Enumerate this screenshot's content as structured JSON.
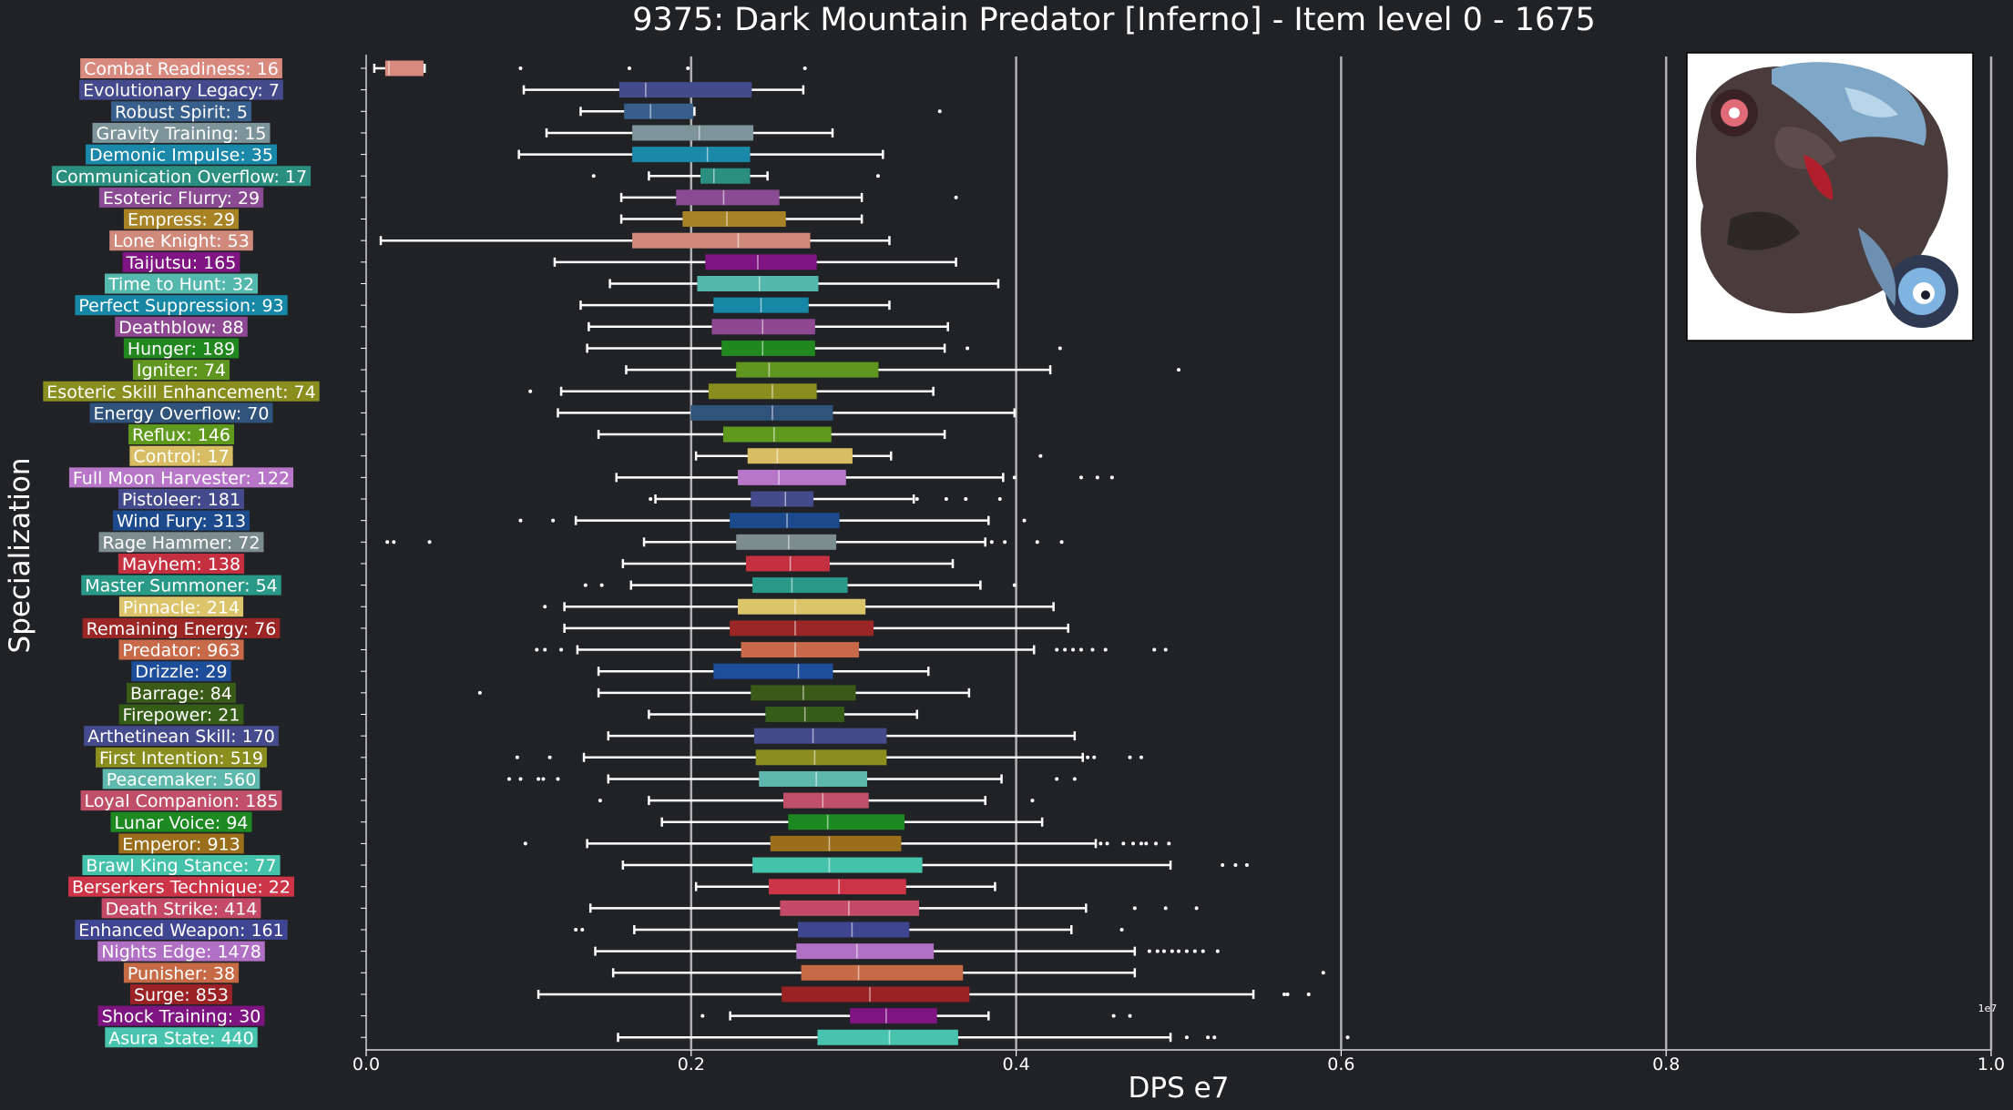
{
  "chart_data": {
    "type": "box",
    "orientation": "horizontal",
    "title": "9375: Dark Mountain Predator [Inferno] - Item level 0 - 1675",
    "xlabel": "DPS e7",
    "ylabel": "Specialization",
    "x_multiplier_label": "1e7",
    "xlim": [
      0,
      1.0
    ],
    "x_ticks": [
      "0.0",
      "0.2",
      "0.4",
      "0.6",
      "0.8",
      "1.0"
    ],
    "x_tick_values": [
      0,
      0.2,
      0.4,
      0.6,
      0.8,
      1.0
    ],
    "grid": "vertical lines at x ticks",
    "legend": "none",
    "portrait_icon": "dark-mountain-predator-portrait",
    "series": [
      {
        "label": "Combat Readiness: 16",
        "color": "#d88a7e",
        "whisker_low": 0.005,
        "q1": 0.012,
        "median": 0.014,
        "q3": 0.035,
        "whisker_high": 0.036,
        "outliers": [
          0.095,
          0.162,
          0.198,
          0.27
        ]
      },
      {
        "label": "Evolutionary Legacy: 7",
        "color": "#444a8c",
        "whisker_low": 0.097,
        "q1": 0.156,
        "median": 0.172,
        "q3": 0.237,
        "whisker_high": 0.269,
        "outliers": []
      },
      {
        "label": "Robust Spirit: 5",
        "color": "#385f8c",
        "whisker_low": 0.132,
        "q1": 0.159,
        "median": 0.175,
        "q3": 0.201,
        "whisker_high": 0.202,
        "outliers": [
          0.353
        ]
      },
      {
        "label": "Gravity Training: 15",
        "color": "#7d959a",
        "whisker_low": 0.111,
        "q1": 0.164,
        "median": 0.205,
        "q3": 0.238,
        "whisker_high": 0.287,
        "outliers": []
      },
      {
        "label": "Demonic Impulse: 35",
        "color": "#1a88a8",
        "whisker_low": 0.094,
        "q1": 0.164,
        "median": 0.21,
        "q3": 0.236,
        "whisker_high": 0.318,
        "outliers": []
      },
      {
        "label": "Communication Overflow: 17",
        "color": "#2a8f7f",
        "whisker_low": 0.174,
        "q1": 0.206,
        "median": 0.214,
        "q3": 0.236,
        "whisker_high": 0.247,
        "outliers": [
          0.14,
          0.315
        ]
      },
      {
        "label": "Esoteric Flurry: 29",
        "color": "#8a4b93",
        "whisker_low": 0.157,
        "q1": 0.191,
        "median": 0.22,
        "q3": 0.254,
        "whisker_high": 0.305,
        "outliers": [
          0.363
        ]
      },
      {
        "label": "Empress: 29",
        "color": "#a88326",
        "whisker_low": 0.157,
        "q1": 0.195,
        "median": 0.222,
        "q3": 0.258,
        "whisker_high": 0.305,
        "outliers": []
      },
      {
        "label": "Lone Knight: 53",
        "color": "#d08a7c",
        "whisker_low": 0.009,
        "q1": 0.164,
        "median": 0.229,
        "q3": 0.273,
        "whisker_high": 0.322,
        "outliers": []
      },
      {
        "label": "Taijutsu: 165",
        "color": "#7e1583",
        "whisker_low": 0.116,
        "q1": 0.209,
        "median": 0.241,
        "q3": 0.277,
        "whisker_high": 0.363,
        "outliers": []
      },
      {
        "label": "Time to Hunt: 32",
        "color": "#55b8ac",
        "whisker_low": 0.15,
        "q1": 0.204,
        "median": 0.242,
        "q3": 0.278,
        "whisker_high": 0.389,
        "outliers": []
      },
      {
        "label": "Perfect Suppression: 93",
        "color": "#1687a5",
        "whisker_low": 0.132,
        "q1": 0.214,
        "median": 0.243,
        "q3": 0.272,
        "whisker_high": 0.322,
        "outliers": []
      },
      {
        "label": "Deathblow: 88",
        "color": "#8e4892",
        "whisker_low": 0.137,
        "q1": 0.213,
        "median": 0.244,
        "q3": 0.276,
        "whisker_high": 0.358,
        "outliers": []
      },
      {
        "label": "Hunger: 189",
        "color": "#20881e",
        "whisker_low": 0.136,
        "q1": 0.219,
        "median": 0.244,
        "q3": 0.276,
        "whisker_high": 0.356,
        "outliers": [
          0.37,
          0.427
        ]
      },
      {
        "label": "Igniter: 74",
        "color": "#5f961f",
        "whisker_low": 0.16,
        "q1": 0.228,
        "median": 0.248,
        "q3": 0.315,
        "whisker_high": 0.421,
        "outliers": [
          0.5
        ]
      },
      {
        "label": "Esoteric Skill Enhancement: 74",
        "color": "#898e1e",
        "whisker_low": 0.12,
        "q1": 0.211,
        "median": 0.25,
        "q3": 0.277,
        "whisker_high": 0.349,
        "outliers": [
          0.101
        ]
      },
      {
        "label": "Energy Overflow: 70",
        "color": "#2f537a",
        "whisker_low": 0.118,
        "q1": 0.2,
        "median": 0.25,
        "q3": 0.287,
        "whisker_high": 0.399,
        "outliers": []
      },
      {
        "label": "Reflux: 146",
        "color": "#5f9a1f",
        "whisker_low": 0.143,
        "q1": 0.22,
        "median": 0.251,
        "q3": 0.286,
        "whisker_high": 0.356,
        "outliers": []
      },
      {
        "label": "Control: 17",
        "color": "#d8bd64",
        "whisker_low": 0.203,
        "q1": 0.235,
        "median": 0.253,
        "q3": 0.299,
        "whisker_high": 0.323,
        "outliers": [
          0.415
        ]
      },
      {
        "label": "Full Moon Harvester: 122",
        "color": "#b776c8",
        "whisker_low": 0.154,
        "q1": 0.229,
        "median": 0.254,
        "q3": 0.295,
        "whisker_high": 0.392,
        "outliers": [
          0.399,
          0.44,
          0.45,
          0.459
        ]
      },
      {
        "label": "Pistoleer: 181",
        "color": "#444a8c",
        "whisker_low": 0.178,
        "q1": 0.237,
        "median": 0.258,
        "q3": 0.275,
        "whisker_high": 0.337,
        "outliers": [
          0.175,
          0.339,
          0.357,
          0.369,
          0.39
        ]
      },
      {
        "label": "Wind Fury: 313",
        "color": "#1c4a8c",
        "whisker_low": 0.129,
        "q1": 0.224,
        "median": 0.259,
        "q3": 0.291,
        "whisker_high": 0.383,
        "outliers": [
          0.095,
          0.115,
          0.405
        ]
      },
      {
        "label": "Rage Hammer: 72",
        "color": "#7d8c8e",
        "whisker_low": 0.171,
        "q1": 0.228,
        "median": 0.26,
        "q3": 0.289,
        "whisker_high": 0.381,
        "outliers": [
          0.013,
          0.017,
          0.039,
          0.385,
          0.393,
          0.413,
          0.428
        ]
      },
      {
        "label": "Mayhem: 138",
        "color": "#c4303f",
        "whisker_low": 0.158,
        "q1": 0.234,
        "median": 0.261,
        "q3": 0.285,
        "whisker_high": 0.361,
        "outliers": []
      },
      {
        "label": "Master Summoner: 54",
        "color": "#2a9a88",
        "whisker_low": 0.163,
        "q1": 0.238,
        "median": 0.262,
        "q3": 0.296,
        "whisker_high": 0.378,
        "outliers": [
          0.135,
          0.145,
          0.399
        ]
      },
      {
        "label": "Pinnacle: 214",
        "color": "#dcc46a",
        "whisker_low": 0.122,
        "q1": 0.229,
        "median": 0.264,
        "q3": 0.307,
        "whisker_high": 0.423,
        "outliers": [
          0.11
        ]
      },
      {
        "label": "Remaining Energy: 76",
        "color": "#9a2625",
        "whisker_low": 0.122,
        "q1": 0.224,
        "median": 0.264,
        "q3": 0.312,
        "whisker_high": 0.432,
        "outliers": []
      },
      {
        "label": "Predator: 963",
        "color": "#c86a4a",
        "whisker_low": 0.13,
        "q1": 0.231,
        "median": 0.264,
        "q3": 0.303,
        "whisker_high": 0.411,
        "outliers": [
          0.105,
          0.11,
          0.12,
          0.425,
          0.43,
          0.435,
          0.44,
          0.447,
          0.455,
          0.485,
          0.492
        ]
      },
      {
        "label": "Drizzle: 29",
        "color": "#1e4d99",
        "whisker_low": 0.143,
        "q1": 0.214,
        "median": 0.266,
        "q3": 0.287,
        "whisker_high": 0.346,
        "outliers": []
      },
      {
        "label": "Barrage: 84",
        "color": "#3a5a17",
        "whisker_low": 0.143,
        "q1": 0.237,
        "median": 0.269,
        "q3": 0.301,
        "whisker_high": 0.371,
        "outliers": [
          0.07
        ]
      },
      {
        "label": "Firepower: 21",
        "color": "#355d17",
        "whisker_low": 0.174,
        "q1": 0.246,
        "median": 0.27,
        "q3": 0.294,
        "whisker_high": 0.339,
        "outliers": []
      },
      {
        "label": "Arthetinean Skill: 170",
        "color": "#444a8c",
        "whisker_low": 0.149,
        "q1": 0.239,
        "median": 0.275,
        "q3": 0.32,
        "whisker_high": 0.436,
        "outliers": []
      },
      {
        "label": "First Intention: 519",
        "color": "#898e1e",
        "whisker_low": 0.134,
        "q1": 0.24,
        "median": 0.276,
        "q3": 0.32,
        "whisker_high": 0.441,
        "outliers": [
          0.093,
          0.113,
          0.444,
          0.448,
          0.47,
          0.477
        ]
      },
      {
        "label": "Peacemaker: 560",
        "color": "#5eb8ac",
        "whisker_low": 0.149,
        "q1": 0.242,
        "median": 0.277,
        "q3": 0.308,
        "whisker_high": 0.391,
        "outliers": [
          0.088,
          0.095,
          0.106,
          0.109,
          0.118,
          0.425,
          0.436
        ]
      },
      {
        "label": "Loyal Companion: 185",
        "color": "#c0506a",
        "whisker_low": 0.174,
        "q1": 0.257,
        "median": 0.281,
        "q3": 0.309,
        "whisker_high": 0.381,
        "outliers": [
          0.144,
          0.41
        ]
      },
      {
        "label": "Lunar Voice: 94",
        "color": "#1c8a20",
        "whisker_low": 0.182,
        "q1": 0.26,
        "median": 0.284,
        "q3": 0.331,
        "whisker_high": 0.416,
        "outliers": []
      },
      {
        "label": "Emperor: 913",
        "color": "#9a6e1a",
        "whisker_low": 0.136,
        "q1": 0.249,
        "median": 0.285,
        "q3": 0.329,
        "whisker_high": 0.449,
        "outliers": [
          0.098,
          0.452,
          0.456,
          0.466,
          0.472,
          0.477,
          0.48,
          0.486,
          0.494
        ]
      },
      {
        "label": "Brawl King Stance: 77",
        "color": "#45c2aa",
        "whisker_low": 0.158,
        "q1": 0.238,
        "median": 0.285,
        "q3": 0.342,
        "whisker_high": 0.495,
        "outliers": [
          0.527,
          0.535,
          0.542
        ]
      },
      {
        "label": "Berserkers Technique: 22",
        "color": "#cc3448",
        "whisker_low": 0.203,
        "q1": 0.248,
        "median": 0.291,
        "q3": 0.332,
        "whisker_high": 0.387,
        "outliers": []
      },
      {
        "label": "Death Strike: 414",
        "color": "#c44a68",
        "whisker_low": 0.138,
        "q1": 0.255,
        "median": 0.297,
        "q3": 0.34,
        "whisker_high": 0.443,
        "outliers": [
          0.473,
          0.492,
          0.511
        ]
      },
      {
        "label": "Enhanced Weapon: 161",
        "color": "#3f4590",
        "whisker_low": 0.165,
        "q1": 0.266,
        "median": 0.299,
        "q3": 0.334,
        "whisker_high": 0.434,
        "outliers": [
          0.129,
          0.133,
          0.465
        ]
      },
      {
        "label": "Nights Edge: 1478",
        "color": "#b070c4",
        "whisker_low": 0.141,
        "q1": 0.265,
        "median": 0.302,
        "q3": 0.349,
        "whisker_high": 0.473,
        "outliers": [
          0.482,
          0.487,
          0.491,
          0.496,
          0.5,
          0.505,
          0.51,
          0.515,
          0.524
        ]
      },
      {
        "label": "Punisher: 38",
        "color": "#c66a45",
        "whisker_low": 0.152,
        "q1": 0.268,
        "median": 0.303,
        "q3": 0.367,
        "whisker_high": 0.473,
        "outliers": [
          0.589
        ]
      },
      {
        "label": "Surge: 853",
        "color": "#9a2225",
        "whisker_low": 0.106,
        "q1": 0.256,
        "median": 0.31,
        "q3": 0.371,
        "whisker_high": 0.546,
        "outliers": [
          0.565,
          0.567,
          0.58
        ]
      },
      {
        "label": "Shock Training: 30",
        "color": "#7d1480",
        "whisker_low": 0.224,
        "q1": 0.298,
        "median": 0.32,
        "q3": 0.351,
        "whisker_high": 0.383,
        "outliers": [
          0.207,
          0.46,
          0.47
        ]
      },
      {
        "label": "Asura State: 440",
        "color": "#48c4ae",
        "whisker_low": 0.155,
        "q1": 0.278,
        "median": 0.322,
        "q3": 0.364,
        "whisker_high": 0.495,
        "outliers": [
          0.505,
          0.518,
          0.522,
          0.604
        ]
      }
    ]
  }
}
